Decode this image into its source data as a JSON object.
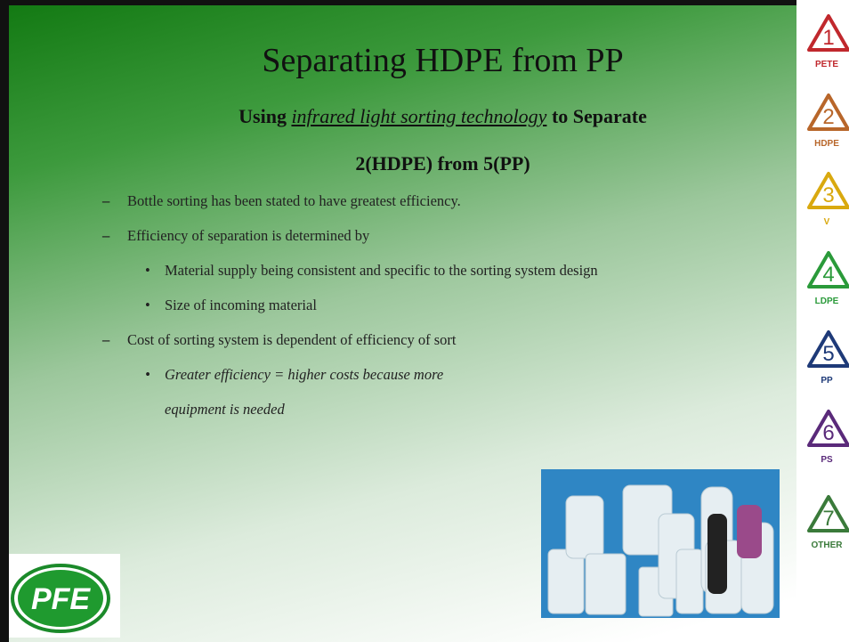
{
  "title": "Separating HDPE from PP",
  "subtitle": {
    "prefix": "Using ",
    "emphasis": "infrared light sorting technology",
    "suffix": " to Separate",
    "line2": "2(HDPE) from 5(PP)"
  },
  "bullets": [
    {
      "text": "Bottle sorting has been stated to have greatest efficiency.",
      "sub": []
    },
    {
      "text": "Efficiency of separation is determined by",
      "sub": [
        "Material supply being consistent and specific to the sorting system design",
        "Size of incoming material"
      ]
    },
    {
      "text": "Cost of sorting system is dependent of efficiency of sort",
      "sub": [
        "Greater efficiency = higher costs because more equipment is needed"
      ]
    }
  ],
  "recycling_codes": [
    {
      "number": 1,
      "label": "PETE",
      "color": "#c0282d"
    },
    {
      "number": 2,
      "label": "HDPE",
      "color": "#b8662a"
    },
    {
      "number": 3,
      "label": "V",
      "color": "#d9a90f"
    },
    {
      "number": 4,
      "label": "LDPE",
      "color": "#2a9a3a"
    },
    {
      "number": 5,
      "label": "PP",
      "color": "#1e3a78"
    },
    {
      "number": 6,
      "label": "PS",
      "color": "#5a2a7a"
    },
    {
      "number": 7,
      "label": "OTHER",
      "color": "#3a7a3a"
    }
  ],
  "logo": "PFE"
}
